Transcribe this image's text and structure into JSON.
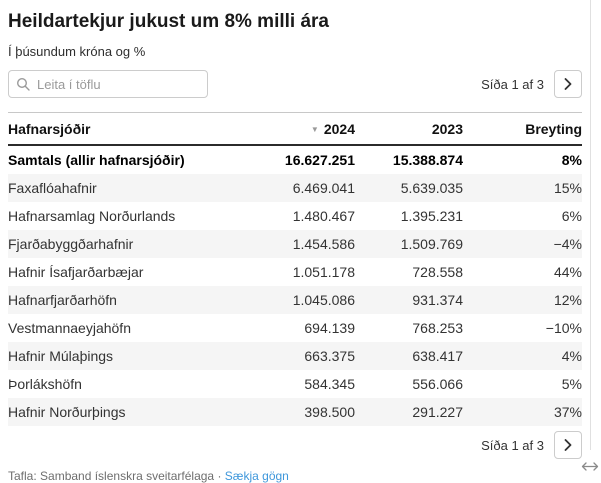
{
  "header": {
    "title": "Heildartekjur jukust um 8% milli ára",
    "subtitle": "Í þúsundum króna og %"
  },
  "search": {
    "placeholder": "Leita í töflu"
  },
  "pagination": {
    "label": "Síða 1 af 3"
  },
  "table": {
    "columns": {
      "name": "Hafnarsjóðir",
      "y2024": "2024",
      "y2023": "2023",
      "change": "Breyting"
    },
    "sorted_column": "2024",
    "sort_direction": "descending",
    "rows": [
      {
        "name": "Samtals (allir hafnarsjóðir)",
        "y2024": "16.627.251",
        "y2023": "15.388.874",
        "change": "8%",
        "is_total": true
      },
      {
        "name": "Faxaflóahafnir",
        "y2024": "6.469.041",
        "y2023": "5.639.035",
        "change": "15%"
      },
      {
        "name": "Hafnarsamlag Norðurlands",
        "y2024": "1.480.467",
        "y2023": "1.395.231",
        "change": "6%"
      },
      {
        "name": "Fjarðabyggðarhafnir",
        "y2024": "1.454.586",
        "y2023": "1.509.769",
        "change": "−4%"
      },
      {
        "name": "Hafnir Ísafjarðarbæjar",
        "y2024": "1.051.178",
        "y2023": "728.558",
        "change": "44%"
      },
      {
        "name": "Hafnarfjarðarhöfn",
        "y2024": "1.045.086",
        "y2023": "931.374",
        "change": "12%"
      },
      {
        "name": "Vestmannaeyjahöfn",
        "y2024": "694.139",
        "y2023": "768.253",
        "change": "−10%"
      },
      {
        "name": "Hafnir Múlaþings",
        "y2024": "663.375",
        "y2023": "638.417",
        "change": "4%"
      },
      {
        "name": "Þorlákshöfn",
        "y2024": "584.345",
        "y2023": "556.066",
        "change": "5%"
      },
      {
        "name": "Hafnir Norðurþings",
        "y2024": "398.500",
        "y2023": "291.227",
        "change": "37%"
      }
    ]
  },
  "footer": {
    "source_label": "Tafla: Samband íslenskra sveitarfélaga",
    "separator": "·",
    "download_link": "Sækja gögn"
  },
  "icons": {
    "sort_glyph": "▼"
  },
  "colors": {
    "link": "#3e97db",
    "stripe": "#f5f5f5",
    "header_rule": "#2b2b2b"
  }
}
